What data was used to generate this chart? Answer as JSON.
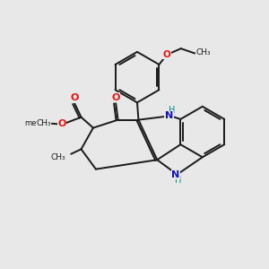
{
  "bg_color": "#e8e8e8",
  "bond_color": "#1a1a1a",
  "oxygen_color": "#ee1111",
  "nitrogen_color": "#1111cc",
  "nitrogen_h_color": "#008888",
  "line_width": 1.4,
  "figsize": [
    3.0,
    3.0
  ],
  "dpi": 100,
  "xlim": [
    0,
    10
  ],
  "ylim": [
    0,
    10
  ]
}
